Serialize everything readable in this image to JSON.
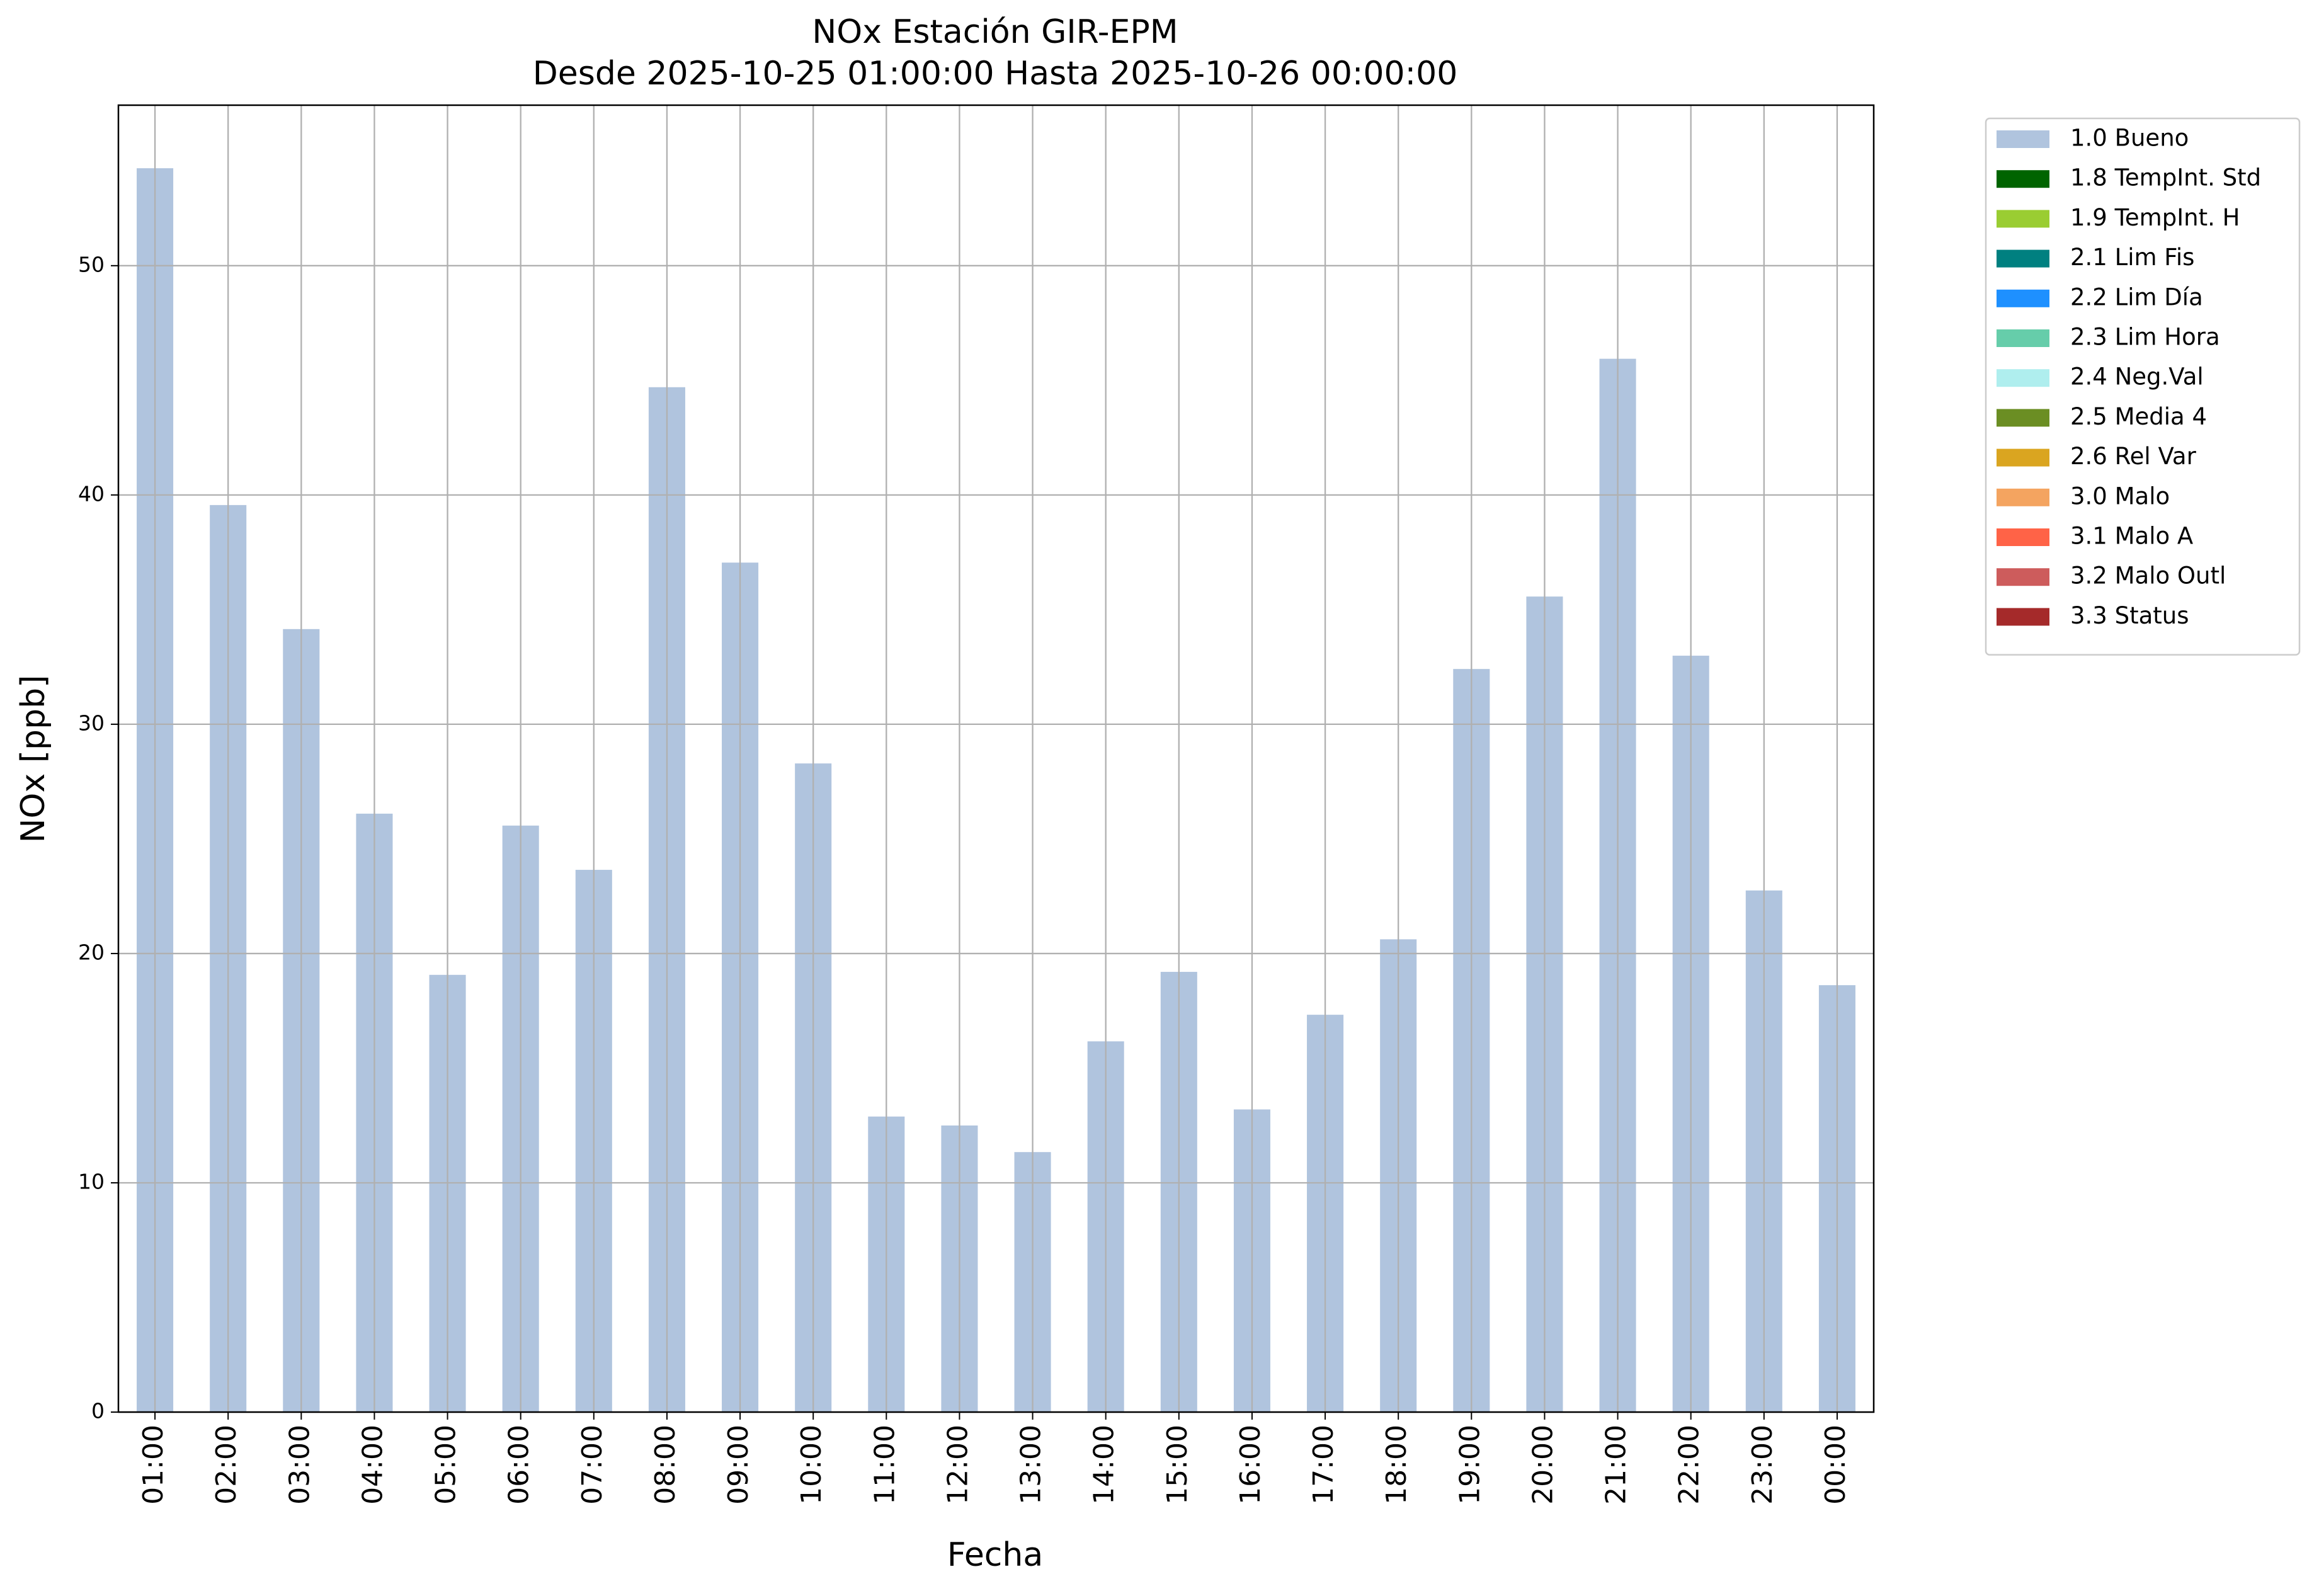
{
  "chart_data": {
    "type": "bar",
    "title": "NOx Estación GIR-EPM",
    "subtitle": "Desde 2025-10-25 01:00:00 Hasta 2025-10-26 00:00:00",
    "x_label": "Fecha",
    "y_label": "NOx [ppb]",
    "categories": [
      "01:00",
      "02:00",
      "03:00",
      "04:00",
      "05:00",
      "06:00",
      "07:00",
      "08:00",
      "09:00",
      "10:00",
      "11:00",
      "12:00",
      "13:00",
      "14:00",
      "15:00",
      "16:00",
      "17:00",
      "18:00",
      "19:00",
      "20:00",
      "21:00",
      "22:00",
      "23:00",
      "00:00"
    ],
    "series": [
      {
        "name": "1.0 Bueno",
        "color": "#b0c4de",
        "values": [
          54.25,
          39.56,
          34.15,
          26.1,
          19.07,
          25.58,
          23.65,
          44.7,
          37.05,
          28.29,
          12.89,
          12.5,
          11.34,
          16.17,
          19.2,
          13.2,
          17.33,
          20.62,
          32.41,
          35.57,
          45.94,
          32.99,
          22.75,
          18.62
        ]
      },
      {
        "name": "1.8 TempInt. Std",
        "color": "#006400",
        "values": [
          0,
          0,
          0,
          0,
          0,
          0,
          0,
          0,
          0,
          0,
          0,
          0,
          0,
          0,
          0,
          0,
          0,
          0,
          0,
          0,
          0,
          0,
          0,
          0
        ]
      },
      {
        "name": "1.9 TempInt. H",
        "color": "#9acd32",
        "values": [
          0,
          0,
          0,
          0,
          0,
          0,
          0,
          0,
          0,
          0,
          0,
          0,
          0,
          0,
          0,
          0,
          0,
          0,
          0,
          0,
          0,
          0,
          0,
          0
        ]
      },
      {
        "name": "2.1 Lim Fis",
        "color": "#008080",
        "values": [
          0,
          0,
          0,
          0,
          0,
          0,
          0,
          0,
          0,
          0,
          0,
          0,
          0,
          0,
          0,
          0,
          0,
          0,
          0,
          0,
          0,
          0,
          0,
          0
        ]
      },
      {
        "name": "2.2 Lim Día",
        "color": "#1e90ff",
        "values": [
          0,
          0,
          0,
          0,
          0,
          0,
          0,
          0,
          0,
          0,
          0,
          0,
          0,
          0,
          0,
          0,
          0,
          0,
          0,
          0,
          0,
          0,
          0,
          0
        ]
      },
      {
        "name": "2.3 Lim Hora",
        "color": "#66cdaa",
        "values": [
          0,
          0,
          0,
          0,
          0,
          0,
          0,
          0,
          0,
          0,
          0,
          0,
          0,
          0,
          0,
          0,
          0,
          0,
          0,
          0,
          0,
          0,
          0,
          0
        ]
      },
      {
        "name": "2.4 Neg.Val",
        "color": "#afeeee",
        "values": [
          0,
          0,
          0,
          0,
          0,
          0,
          0,
          0,
          0,
          0,
          0,
          0,
          0,
          0,
          0,
          0,
          0,
          0,
          0,
          0,
          0,
          0,
          0,
          0
        ]
      },
      {
        "name": "2.5 Media 4",
        "color": "#6b8e23",
        "values": [
          0,
          0,
          0,
          0,
          0,
          0,
          0,
          0,
          0,
          0,
          0,
          0,
          0,
          0,
          0,
          0,
          0,
          0,
          0,
          0,
          0,
          0,
          0,
          0
        ]
      },
      {
        "name": "2.6 Rel Var",
        "color": "#daa520",
        "values": [
          0,
          0,
          0,
          0,
          0,
          0,
          0,
          0,
          0,
          0,
          0,
          0,
          0,
          0,
          0,
          0,
          0,
          0,
          0,
          0,
          0,
          0,
          0,
          0
        ]
      },
      {
        "name": "3.0 Malo",
        "color": "#f4a460",
        "values": [
          0,
          0,
          0,
          0,
          0,
          0,
          0,
          0,
          0,
          0,
          0,
          0,
          0,
          0,
          0,
          0,
          0,
          0,
          0,
          0,
          0,
          0,
          0,
          0
        ]
      },
      {
        "name": "3.1 Malo A",
        "color": "#ff6347",
        "values": [
          0,
          0,
          0,
          0,
          0,
          0,
          0,
          0,
          0,
          0,
          0,
          0,
          0,
          0,
          0,
          0,
          0,
          0,
          0,
          0,
          0,
          0,
          0,
          0
        ]
      },
      {
        "name": "3.2 Malo Outl",
        "color": "#cd5c5c",
        "values": [
          0,
          0,
          0,
          0,
          0,
          0,
          0,
          0,
          0,
          0,
          0,
          0,
          0,
          0,
          0,
          0,
          0,
          0,
          0,
          0,
          0,
          0,
          0,
          0
        ]
      },
      {
        "name": "3.3 Status",
        "color": "#a52a2a",
        "values": [
          0,
          0,
          0,
          0,
          0,
          0,
          0,
          0,
          0,
          0,
          0,
          0,
          0,
          0,
          0,
          0,
          0,
          0,
          0,
          0,
          0,
          0,
          0,
          0
        ]
      }
    ],
    "stacked": true,
    "ylim": [
      0,
      57
    ],
    "yticks": [
      0,
      10,
      20,
      30,
      40,
      50
    ],
    "grid": true,
    "legend": "outside right"
  }
}
